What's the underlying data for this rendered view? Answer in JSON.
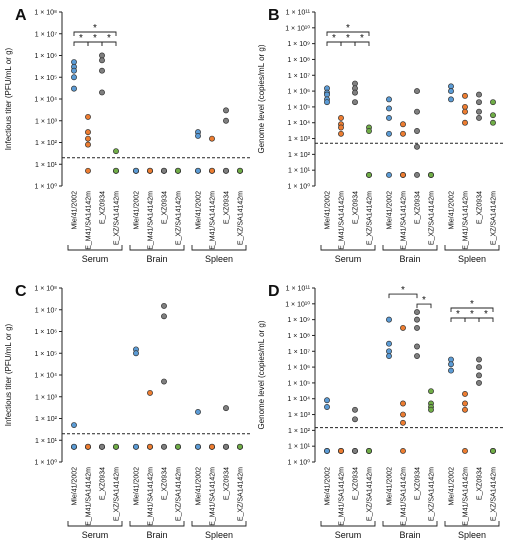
{
  "figure": {
    "panels": [
      "A",
      "B",
      "C",
      "D"
    ]
  },
  "colors": {
    "Mle/41/2002": "#5b9bd5",
    "E_M41/SA14142m": "#ed7d31",
    "E_XZ0934": "#7f7f7f",
    "E_XZ/SA14142m": "#70ad47",
    "outline": "#333333"
  },
  "chart_data": [
    {
      "panel": "A",
      "type": "scatter",
      "ylabel": "Infectious titer (PFU/mL or g)",
      "yscale": "log",
      "ylim_exp": [
        0,
        8
      ],
      "ytick_labels": [
        "1 × 10⁰",
        "1 × 10¹",
        "1 × 10²",
        "1 × 10³",
        "1 × 10⁴",
        "1 × 10⁵",
        "1 × 10⁶",
        "1 × 10⁷",
        "1 × 10⁸"
      ],
      "detection_limit": 20,
      "groups": [
        "Serum",
        "Brain",
        "Spleen"
      ],
      "categories": [
        "Mle/41/2002",
        "E_M41/SA14142m",
        "E_XZ0934",
        "E_XZ/SA14142m"
      ],
      "points": [
        [
          [
            500000,
            300000,
            200000,
            100000,
            30000
          ],
          [
            1500,
            300,
            150,
            80,
            5
          ],
          [
            1000000,
            600000,
            200000,
            20000
          ],
          [
            40,
            5,
            5,
            5,
            5
          ]
        ],
        [
          [
            5,
            5,
            5,
            5,
            5
          ],
          [
            5,
            5,
            5,
            5,
            5
          ],
          [
            5,
            5,
            5,
            5,
            5
          ],
          [
            5,
            5,
            5,
            5,
            5
          ]
        ],
        [
          [
            300,
            200,
            5,
            5,
            5
          ],
          [
            150,
            5,
            5,
            5,
            5
          ],
          [
            3000,
            1000,
            5,
            5,
            5
          ],
          [
            5,
            5,
            5,
            5,
            5
          ]
        ]
      ],
      "brackets": [
        {
          "group": 0,
          "from": 0,
          "to": 3,
          "level": 1,
          "label": "*"
        },
        {
          "group": 0,
          "from": 0,
          "to": 1,
          "level": 0,
          "label": "*"
        },
        {
          "group": 0,
          "from": 1,
          "to": 2,
          "level": 0,
          "label": "*"
        },
        {
          "group": 0,
          "from": 2,
          "to": 3,
          "level": 0,
          "label": "*"
        }
      ]
    },
    {
      "panel": "B",
      "type": "scatter",
      "ylabel": "Genome level (copies/mL or g)",
      "yscale": "log",
      "ylim_exp": [
        0,
        11
      ],
      "ytick_labels": [
        "1 × 10⁰",
        "1 × 10¹",
        "1 × 10²",
        "1 × 10³",
        "1 × 10⁴",
        "1 × 10⁵",
        "1 × 10⁶",
        "1 × 10⁷",
        "1 × 10⁸",
        "1 × 10⁹",
        "1 × 10¹⁰",
        "1 × 10¹¹"
      ],
      "detection_limit": 500,
      "groups": [
        "Serum",
        "Brain",
        "Spleen"
      ],
      "categories": [
        "Mle/41/2002",
        "E_M41/SA14142m",
        "E_XZ0934",
        "E_XZ/SA14142m"
      ],
      "points": [
        [
          [
            1500000,
            800000,
            600000,
            300000,
            200000
          ],
          [
            20000,
            8000,
            5000,
            2000
          ],
          [
            3000000,
            1500000,
            800000,
            200000
          ],
          [
            5000,
            3000,
            5,
            5,
            5
          ]
        ],
        [
          [
            300000,
            80000,
            20000,
            2000,
            5
          ],
          [
            8000,
            2000,
            5,
            5,
            5
          ],
          [
            1000000,
            50000,
            3000,
            300,
            5
          ],
          [
            5,
            5,
            5,
            5,
            5
          ]
        ],
        [
          [
            2000000,
            1000000,
            300000
          ],
          [
            500000,
            100000,
            50000,
            10000
          ],
          [
            600000,
            200000,
            50000,
            20000
          ],
          [
            200000,
            30000,
            10000
          ]
        ]
      ],
      "brackets": [
        {
          "group": 0,
          "from": 0,
          "to": 3,
          "level": 1,
          "label": "*"
        },
        {
          "group": 0,
          "from": 0,
          "to": 1,
          "level": 0,
          "label": "*"
        },
        {
          "group": 0,
          "from": 1,
          "to": 2,
          "level": 0,
          "label": "*"
        },
        {
          "group": 0,
          "from": 2,
          "to": 3,
          "level": 0,
          "label": "*"
        }
      ]
    },
    {
      "panel": "C",
      "type": "scatter",
      "ylabel": "Infectious titer (PFU/mL or g)",
      "yscale": "log",
      "ylim_exp": [
        0,
        8
      ],
      "ytick_labels": [
        "1 × 10⁰",
        "1 × 10¹",
        "1 × 10²",
        "1 × 10³",
        "1 × 10⁴",
        "1 × 10⁵",
        "1 × 10⁶",
        "1 × 10⁷",
        "1 × 10⁸"
      ],
      "detection_limit": 20,
      "groups": [
        "Serum",
        "Brain",
        "Spleen"
      ],
      "categories": [
        "Mle/41/2002",
        "E_M41/SA14142m",
        "E_XZ0934",
        "E_XZ/SA14142m"
      ],
      "points": [
        [
          [
            50,
            5,
            5,
            5,
            5
          ],
          [
            5,
            5,
            5,
            5,
            5
          ],
          [
            5,
            5,
            5,
            5,
            5
          ],
          [
            5,
            5,
            5,
            5,
            5
          ]
        ],
        [
          [
            150000,
            100000,
            5,
            5,
            5
          ],
          [
            1500,
            5,
            5,
            5,
            5
          ],
          [
            15000000,
            5000000,
            5000,
            5,
            5
          ],
          [
            5,
            5,
            5,
            5,
            5
          ]
        ],
        [
          [
            200,
            5,
            5,
            5,
            5
          ],
          [
            5,
            5,
            5,
            5,
            5
          ],
          [
            300,
            5,
            5,
            5,
            5
          ],
          [
            5,
            5,
            5,
            5,
            5
          ]
        ]
      ],
      "brackets": []
    },
    {
      "panel": "D",
      "type": "scatter",
      "ylabel": "Genome level (copies/mL or g)",
      "yscale": "log",
      "ylim_exp": [
        0,
        11
      ],
      "ytick_labels": [
        "1 × 10⁰",
        "1 × 10¹",
        "1 × 10²",
        "1 × 10³",
        "1 × 10⁴",
        "1 × 10⁵",
        "1 × 10⁶",
        "1 × 10⁷",
        "1 × 10⁸",
        "1 × 10⁹",
        "1 × 10¹⁰",
        "1 × 10¹¹"
      ],
      "detection_limit": 150,
      "groups": [
        "Serum",
        "Brain",
        "Spleen"
      ],
      "categories": [
        "Mle/41/2002",
        "E_M41/SA14142m",
        "E_XZ0934",
        "E_XZ/SA14142m"
      ],
      "points": [
        [
          [
            8000,
            3000,
            5,
            5,
            5
          ],
          [
            5,
            5,
            5,
            5,
            5
          ],
          [
            2000,
            500,
            5,
            5,
            5
          ],
          [
            5,
            5,
            5,
            5,
            5
          ]
        ],
        [
          [
            1000000000,
            30000000,
            10000000,
            5000000
          ],
          [
            300000000,
            5000,
            1000,
            300,
            5
          ],
          [
            3000000000,
            1000000000,
            300000000,
            20000000,
            5000000
          ],
          [
            30000,
            5000,
            3000,
            2000
          ]
        ],
        [
          [
            3000000,
            1500000,
            600000
          ],
          [
            20000,
            5000,
            2000,
            5
          ],
          [
            3000000,
            1000000,
            300000,
            100000
          ],
          [
            5,
            5,
            5,
            5,
            5
          ]
        ]
      ],
      "brackets": [
        {
          "group": 1,
          "from": 0,
          "to": 2,
          "level": 1,
          "label": "*"
        },
        {
          "group": 1,
          "from": 2,
          "to": 3,
          "level": 0,
          "label": "*"
        },
        {
          "group": 2,
          "from": 0,
          "to": 3,
          "level": 1,
          "label": "*"
        },
        {
          "group": 2,
          "from": 0,
          "to": 1,
          "level": 0,
          "label": "*"
        },
        {
          "group": 2,
          "from": 1,
          "to": 2,
          "level": 0,
          "label": "*"
        },
        {
          "group": 2,
          "from": 2,
          "to": 3,
          "level": 0,
          "label": "*"
        }
      ]
    }
  ]
}
